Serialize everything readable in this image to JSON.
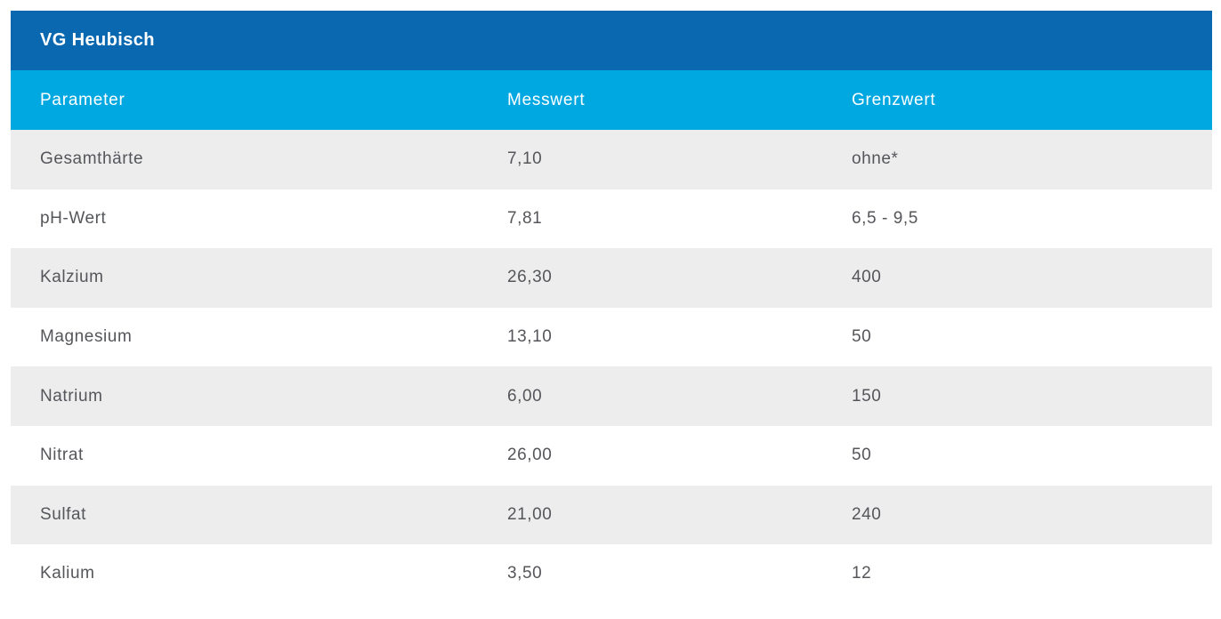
{
  "table": {
    "title": "VG Heubisch",
    "columns": {
      "parameter": "Parameter",
      "messwert": "Messwert",
      "grenzwert": "Grenzwert"
    },
    "rows": [
      {
        "parameter": "Gesamthärte",
        "messwert": "7,10",
        "grenzwert": "ohne*"
      },
      {
        "parameter": "pH-Wert",
        "messwert": "7,81",
        "grenzwert": "6,5 - 9,5"
      },
      {
        "parameter": "Kalzium",
        "messwert": "26,30",
        "grenzwert": "400"
      },
      {
        "parameter": "Magnesium",
        "messwert": "13,10",
        "grenzwert": "50"
      },
      {
        "parameter": "Natrium",
        "messwert": "6,00",
        "grenzwert": "150"
      },
      {
        "parameter": "Nitrat",
        "messwert": "26,00",
        "grenzwert": "50"
      },
      {
        "parameter": "Sulfat",
        "messwert": "21,00",
        "grenzwert": "240"
      },
      {
        "parameter": "Kalium",
        "messwert": "3,50",
        "grenzwert": "12"
      }
    ],
    "colors": {
      "title_bg": "#0a68b1",
      "header_bg": "#00a8e2",
      "row_alt_bg": "#ededee",
      "row_text": "#55565a",
      "header_text": "#ffffff"
    }
  }
}
